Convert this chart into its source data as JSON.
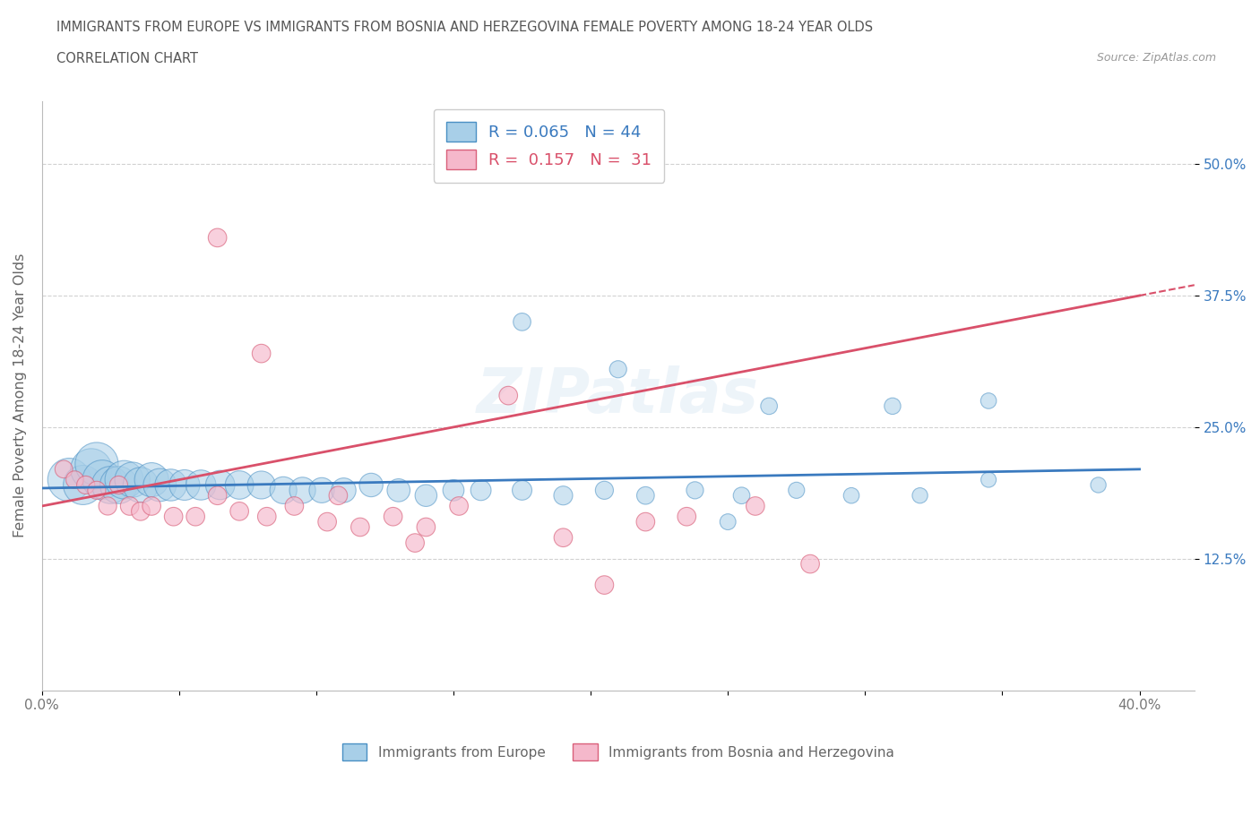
{
  "title_line1": "IMMIGRANTS FROM EUROPE VS IMMIGRANTS FROM BOSNIA AND HERZEGOVINA FEMALE POVERTY AMONG 18-24 YEAR OLDS",
  "title_line2": "CORRELATION CHART",
  "source": "Source: ZipAtlas.com",
  "ylabel": "Female Poverty Among 18-24 Year Olds",
  "xlim": [
    0.0,
    0.42
  ],
  "ylim": [
    0.0,
    0.56
  ],
  "R_europe": 0.065,
  "N_europe": 44,
  "R_bosnia": 0.157,
  "N_bosnia": 31,
  "color_europe": "#a8cfe8",
  "color_bosnia": "#f5b8cb",
  "edge_europe": "#4a90c4",
  "edge_bosnia": "#d9607a",
  "trendline_europe": "#3a7abf",
  "trendline_bosnia": "#d9506a",
  "legend_label_europe": "Immigrants from Europe",
  "legend_label_bosnia": "Immigrants from Bosnia and Herzegovina",
  "europe_x": [
    0.01,
    0.015,
    0.018,
    0.02,
    0.022,
    0.025,
    0.028,
    0.03,
    0.033,
    0.036,
    0.04,
    0.043,
    0.047,
    0.052,
    0.058,
    0.065,
    0.072,
    0.08,
    0.088,
    0.095,
    0.102,
    0.11,
    0.12,
    0.13,
    0.14,
    0.15,
    0.16,
    0.175,
    0.19,
    0.205,
    0.22,
    0.238,
    0.255,
    0.275,
    0.295,
    0.32,
    0.345,
    0.175,
    0.21,
    0.265,
    0.31,
    0.345,
    0.385,
    0.25
  ],
  "europe_y": [
    0.2,
    0.195,
    0.21,
    0.215,
    0.2,
    0.195,
    0.195,
    0.2,
    0.2,
    0.195,
    0.2,
    0.195,
    0.195,
    0.195,
    0.195,
    0.195,
    0.195,
    0.195,
    0.19,
    0.19,
    0.19,
    0.19,
    0.195,
    0.19,
    0.185,
    0.19,
    0.19,
    0.19,
    0.185,
    0.19,
    0.185,
    0.19,
    0.185,
    0.19,
    0.185,
    0.185,
    0.2,
    0.35,
    0.305,
    0.27,
    0.27,
    0.275,
    0.195,
    0.16
  ],
  "europe_sizes": [
    1200,
    1000,
    1100,
    1200,
    1000,
    900,
    900,
    950,
    800,
    800,
    750,
    700,
    650,
    600,
    580,
    550,
    520,
    500,
    470,
    440,
    410,
    390,
    360,
    340,
    310,
    290,
    270,
    250,
    230,
    210,
    200,
    190,
    180,
    170,
    160,
    155,
    150,
    200,
    190,
    180,
    175,
    160,
    155,
    165
  ],
  "bosnia_x": [
    0.008,
    0.012,
    0.016,
    0.02,
    0.024,
    0.028,
    0.032,
    0.036,
    0.04,
    0.048,
    0.056,
    0.064,
    0.072,
    0.082,
    0.092,
    0.104,
    0.116,
    0.128,
    0.14,
    0.152,
    0.064,
    0.17,
    0.08,
    0.19,
    0.205,
    0.22,
    0.235,
    0.108,
    0.26,
    0.28,
    0.136
  ],
  "bosnia_y": [
    0.21,
    0.2,
    0.195,
    0.19,
    0.175,
    0.195,
    0.175,
    0.17,
    0.175,
    0.165,
    0.165,
    0.185,
    0.17,
    0.165,
    0.175,
    0.16,
    0.155,
    0.165,
    0.155,
    0.175,
    0.43,
    0.28,
    0.32,
    0.145,
    0.1,
    0.16,
    0.165,
    0.185,
    0.175,
    0.12,
    0.14
  ],
  "bosnia_sizes": [
    200,
    200,
    210,
    210,
    210,
    210,
    220,
    220,
    220,
    220,
    220,
    220,
    220,
    220,
    220,
    220,
    220,
    220,
    220,
    220,
    220,
    220,
    220,
    220,
    220,
    220,
    220,
    220,
    220,
    220,
    220
  ],
  "trendline_eu_x0": 0.0,
  "trendline_eu_y0": 0.192,
  "trendline_eu_x1": 0.4,
  "trendline_eu_y1": 0.21,
  "trendline_bo_x0": 0.0,
  "trendline_bo_y0": 0.175,
  "trendline_bo_x1": 0.4,
  "trendline_bo_y1": 0.375,
  "watermark": "ZIPatlas",
  "background_color": "#ffffff",
  "grid_color": "#cccccc"
}
